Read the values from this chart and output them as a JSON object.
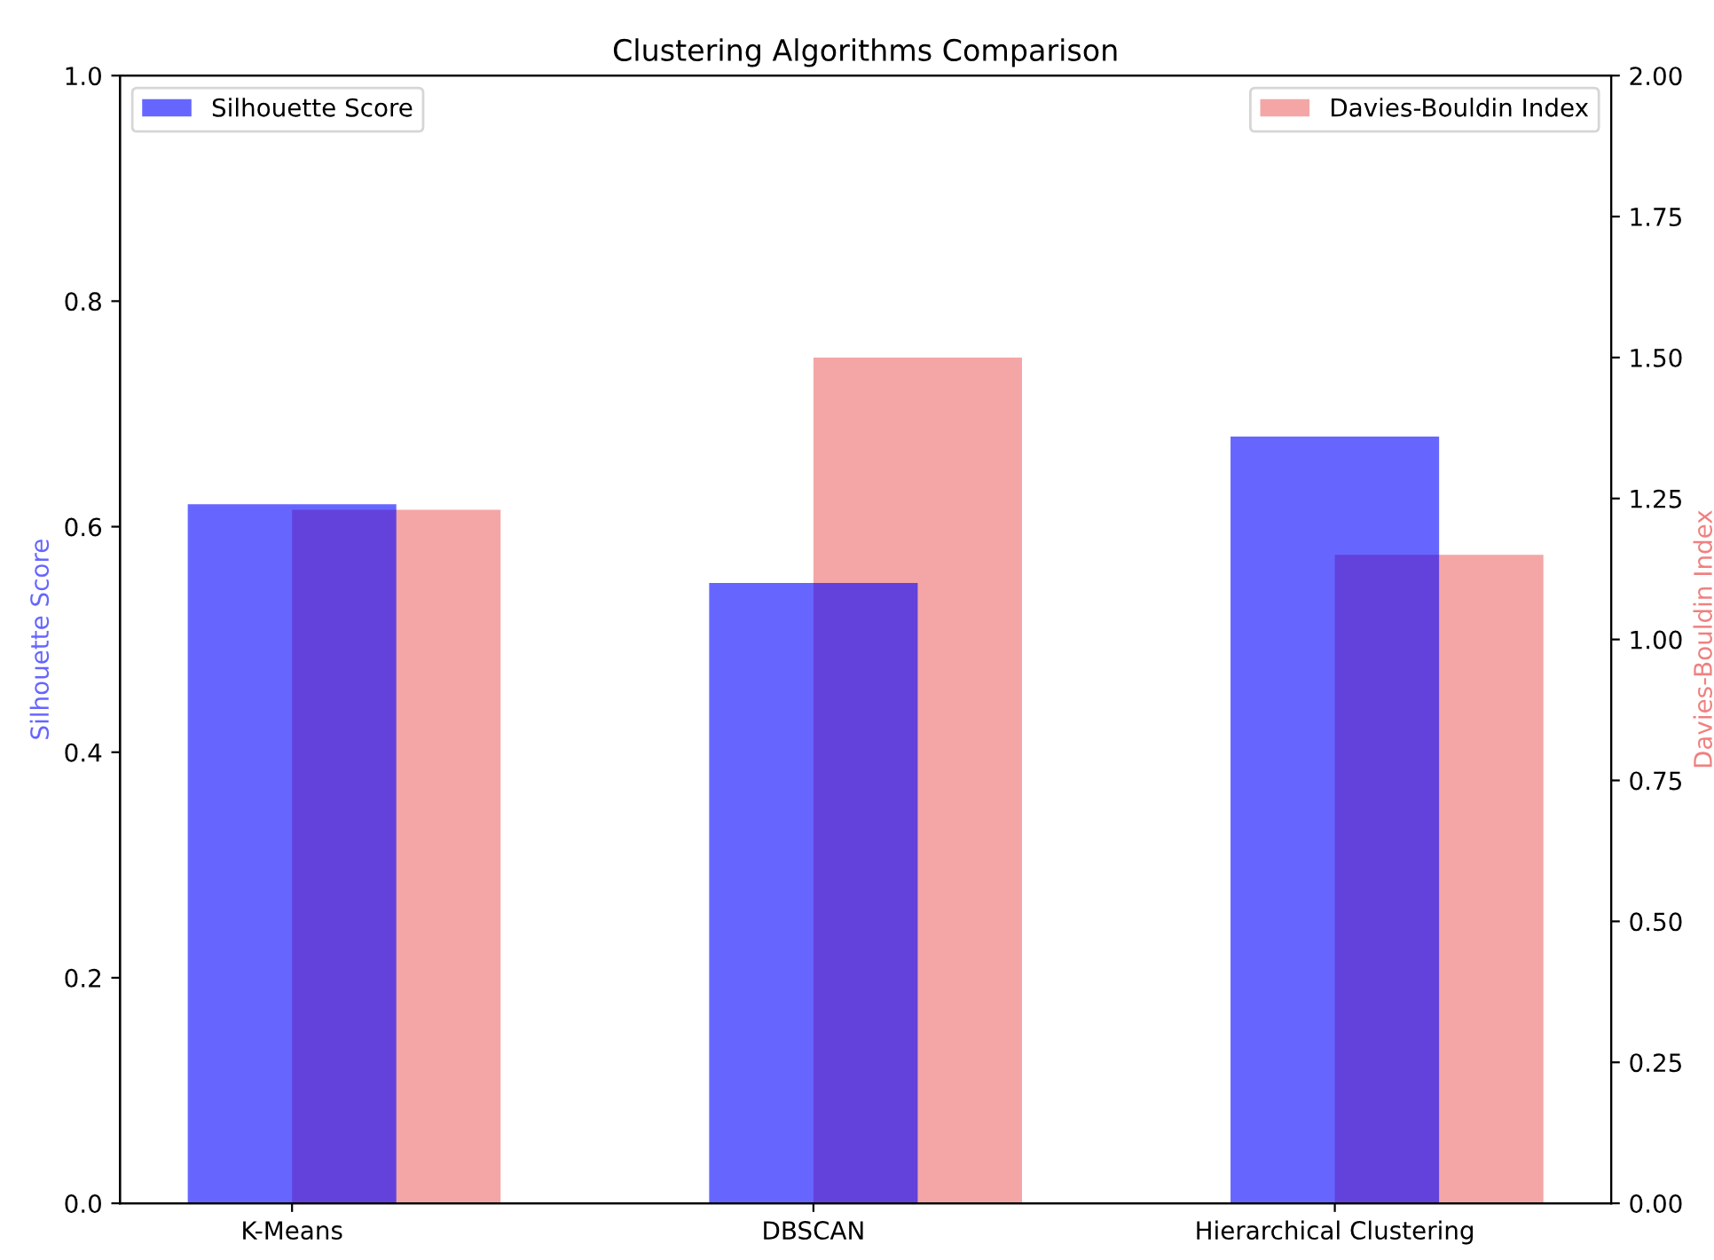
{
  "chart_data": {
    "type": "bar",
    "title": "Clustering Algorithms Comparison",
    "categories": [
      "K-Means",
      "DBSCAN",
      "Hierarchical Clustering"
    ],
    "series": [
      {
        "name": "Silhouette Score",
        "color": "#0000ff",
        "values": [
          0.62,
          0.55,
          0.68
        ]
      },
      {
        "name": "Davies-Bouldin Index",
        "color": "#f08080",
        "values": [
          1.23,
          1.5,
          1.15
        ],
        "axis": "y2"
      }
    ],
    "ylabel": "Silhouette Score",
    "y2label": "Davies-Bouldin Index",
    "ylim": [
      0,
      1
    ],
    "yticks": [
      {
        "value": 0,
        "label": "0.0"
      },
      0.2,
      0.4,
      0.6,
      0.8,
      {
        "value": 1,
        "label": "1.0"
      }
    ],
    "y2lim": [
      0,
      2
    ],
    "y2ticks": [
      {
        "value": 0,
        "label": "0.00"
      },
      0.25,
      {
        "value": 0.5,
        "label": "0.50"
      },
      0.75,
      {
        "value": 1,
        "label": "1.00"
      },
      1.25,
      {
        "value": 1.5,
        "label": "1.50"
      },
      1.75,
      {
        "value": 2,
        "label": "2.00"
      }
    ],
    "legend": "top",
    "grid": false
  }
}
